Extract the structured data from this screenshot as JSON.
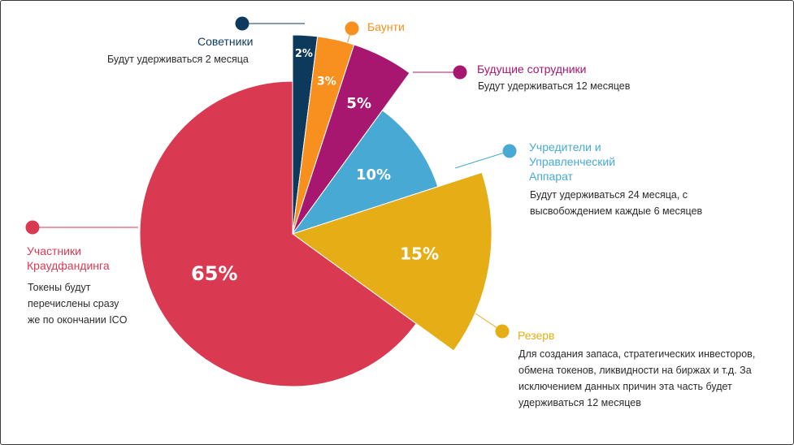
{
  "colors": {
    "advisors": "#0d3a5c",
    "bounty": "#f7901e",
    "future": "#a8176f",
    "founders": "#48aad4",
    "reserve": "#e5ae17",
    "crowd": "#d93a52"
  },
  "chart_data": {
    "type": "pie",
    "title": "",
    "slices": [
      {
        "name": "Советники",
        "value": 2,
        "label": "2%",
        "exploded": true,
        "note": "Будут удерживаться 2 месяца"
      },
      {
        "name": "Баунти",
        "value": 3,
        "label": "3%",
        "exploded": true,
        "note": ""
      },
      {
        "name": "Будущие сотрудники",
        "value": 5,
        "label": "5%",
        "exploded": true,
        "note": "Будут удерживаться 12 месяцев"
      },
      {
        "name": "Учредители и\nУправленческий\nАппарат",
        "value": 10,
        "label": "10%",
        "exploded": false,
        "note": "Будут удерживаться 24 месяца, с\nвысвобождением каждые 6 месяцев"
      },
      {
        "name": "Резерв",
        "value": 15,
        "label": "15%",
        "exploded": true,
        "note": "Для создания запаса, стратегических инвесторов,\nобмена токенов, ликвидности на биржах и т.д. За\nисключением данных причин эта часть будет\nудерживаться 12 месяцев"
      },
      {
        "name": "Участники\nКраудфандинга",
        "value": 65,
        "label": "65%",
        "exploded": false,
        "note": "Токены будут\nперечислены сразу\nже по окончании ICO"
      }
    ]
  }
}
